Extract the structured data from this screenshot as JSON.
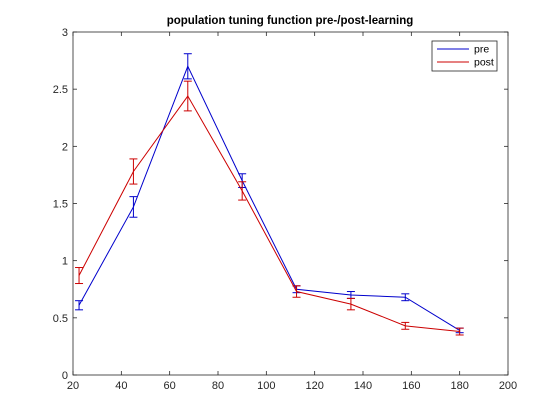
{
  "chart_data": {
    "type": "line",
    "title": "population tuning function pre-/post-learning",
    "xlabel": "",
    "ylabel": "",
    "xlim": [
      20,
      200
    ],
    "ylim": [
      0,
      3
    ],
    "x_ticks": [
      20,
      40,
      60,
      80,
      100,
      120,
      140,
      160,
      180,
      200
    ],
    "y_ticks": [
      0,
      0.5,
      1,
      1.5,
      2,
      2.5,
      3
    ],
    "x_tick_labels": [
      "20",
      "40",
      "60",
      "80",
      "100",
      "120",
      "140",
      "160",
      "180",
      "200"
    ],
    "y_tick_labels": [
      "0",
      "0.5",
      "1",
      "1.5",
      "2",
      "2.5",
      "3"
    ],
    "grid": false,
    "legend_position": "top-right",
    "x": [
      22.5,
      45,
      67.5,
      90,
      112.5,
      135,
      157.5,
      180
    ],
    "series": [
      {
        "name": "pre",
        "color": "#0000cc",
        "values": [
          0.61,
          1.47,
          2.7,
          1.7,
          0.75,
          0.7,
          0.68,
          0.39
        ],
        "errors": [
          0.04,
          0.09,
          0.11,
          0.06,
          0.03,
          0.03,
          0.03,
          0.02
        ]
      },
      {
        "name": "post",
        "color": "#cc0000",
        "values": [
          0.87,
          1.78,
          2.44,
          1.61,
          0.73,
          0.62,
          0.43,
          0.38
        ],
        "errors": [
          0.07,
          0.11,
          0.13,
          0.08,
          0.05,
          0.05,
          0.03,
          0.03
        ]
      }
    ]
  }
}
